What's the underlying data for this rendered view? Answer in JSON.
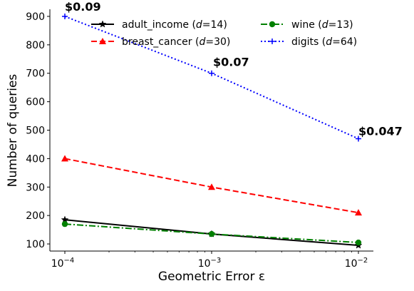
{
  "chart_data": {
    "type": "line",
    "xlabel": "Geometric Error ε",
    "ylabel": "Number of queries",
    "x_scale": "log",
    "x": [
      0.0001,
      0.001,
      0.01
    ],
    "x_tick_labels": [
      {
        "base": "10",
        "exp": "−4"
      },
      {
        "base": "10",
        "exp": "−3"
      },
      {
        "base": "10",
        "exp": "−2"
      }
    ],
    "ylim": [
      75,
      925
    ],
    "y_ticks": [
      100,
      200,
      300,
      400,
      500,
      600,
      700,
      800,
      900
    ],
    "y_tick_labels": [
      "100",
      "200",
      "300",
      "400",
      "500",
      "600",
      "700",
      "800",
      "900"
    ],
    "grid": false,
    "legend_position": "top",
    "series": [
      {
        "name": "adult_income",
        "d_label": "d",
        "d_value": "=14",
        "color": "#000000",
        "dash": "solid",
        "marker": "star",
        "values": [
          185,
          135,
          95
        ]
      },
      {
        "name": "breast_cancer",
        "d_label": "d",
        "d_value": "=30",
        "color": "#ff0000",
        "dash": "dashed",
        "marker": "triangle",
        "values": [
          400,
          300,
          210
        ]
      },
      {
        "name": "wine",
        "d_label": "d",
        "d_value": "=13",
        "color": "#008000",
        "dash": "dashdot",
        "marker": "circle",
        "values": [
          170,
          135,
          105
        ]
      },
      {
        "name": "digits",
        "d_label": "d",
        "d_value": "=64",
        "color": "#0000ff",
        "dash": "dotted",
        "marker": "plus",
        "values": [
          900,
          700,
          470
        ]
      }
    ],
    "annotations": [
      {
        "text": "$0.09",
        "series": "digits",
        "x": 0.0001,
        "y": 900
      },
      {
        "text": "$0.07",
        "series": "digits",
        "x": 0.001,
        "y": 700
      },
      {
        "text": "$0.047",
        "series": "digits",
        "x": 0.01,
        "y": 470
      }
    ]
  }
}
